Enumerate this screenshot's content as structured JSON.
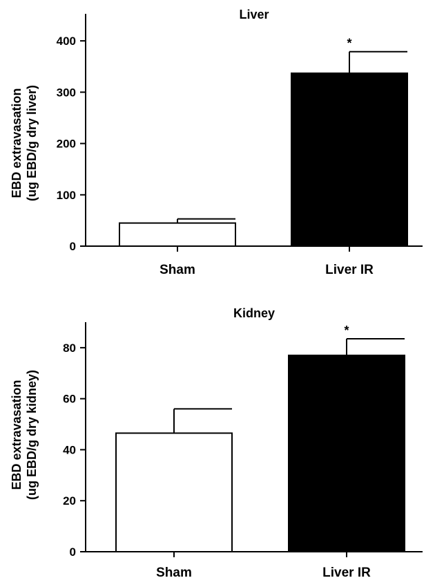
{
  "chart_data": [
    {
      "type": "bar",
      "title": "Liver",
      "ylabel_line1": "EBD extravasation",
      "ylabel_line2": "(ug EBD/g dry liver)",
      "xlabel": "",
      "categories": [
        "Sham",
        "Liver IR"
      ],
      "values": [
        45,
        337
      ],
      "errors": [
        8,
        42
      ],
      "significance": [
        "",
        "*"
      ],
      "bar_colors": [
        "#ffffff",
        "#000000"
      ],
      "ylim": [
        0,
        450
      ],
      "yticks": [
        0,
        100,
        200,
        300,
        400
      ],
      "grid": false
    },
    {
      "type": "bar",
      "title": "Kidney",
      "ylabel_line1": "EBD extravasation",
      "ylabel_line2": "(ug EBD/g dry kidney)",
      "xlabel": "",
      "categories": [
        "Sham",
        "Liver IR"
      ],
      "values": [
        46.5,
        77
      ],
      "errors": [
        9.5,
        6.5
      ],
      "significance": [
        "",
        "*"
      ],
      "bar_colors": [
        "#ffffff",
        "#000000"
      ],
      "ylim": [
        0,
        90
      ],
      "yticks": [
        0,
        20,
        40,
        60,
        80
      ],
      "grid": false
    }
  ]
}
